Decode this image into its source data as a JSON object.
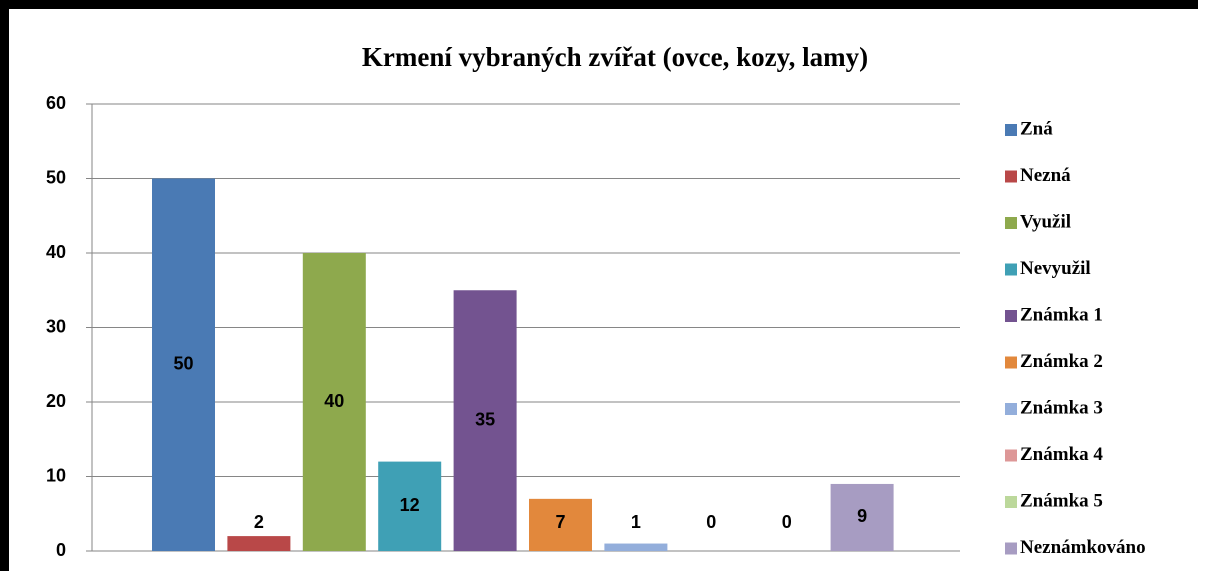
{
  "chart_data": {
    "type": "bar",
    "title": "Krmení vybraných zvířat (ovce, kozy, lamy)",
    "series": [
      {
        "name": "Zná",
        "color": "#4a7ab4",
        "values": [
          50
        ]
      },
      {
        "name": "Nezná",
        "color": "#b94848",
        "values": [
          2
        ]
      },
      {
        "name": "Využil",
        "color": "#8ea94d",
        "values": [
          40
        ]
      },
      {
        "name": "Nevyužil",
        "color": "#3fa0b5",
        "values": [
          12
        ]
      },
      {
        "name": "Známka 1",
        "color": "#735390",
        "values": [
          35
        ]
      },
      {
        "name": "Známka 2",
        "color": "#e2883c",
        "values": [
          7
        ]
      },
      {
        "name": "Známka 3",
        "color": "#93aedb",
        "values": [
          1
        ]
      },
      {
        "name": "Známka 4",
        "color": "#dd9797",
        "values": [
          0
        ]
      },
      {
        "name": "Známka 5",
        "color": "#bcd89b",
        "values": [
          0
        ]
      },
      {
        "name": "Neznámkováno",
        "color": "#a79cc2",
        "values": [
          9
        ]
      }
    ],
    "ylim": [
      0,
      60
    ],
    "yticks": [
      0,
      10,
      20,
      30,
      40,
      50,
      60
    ],
    "grid": true,
    "legend": "right"
  }
}
